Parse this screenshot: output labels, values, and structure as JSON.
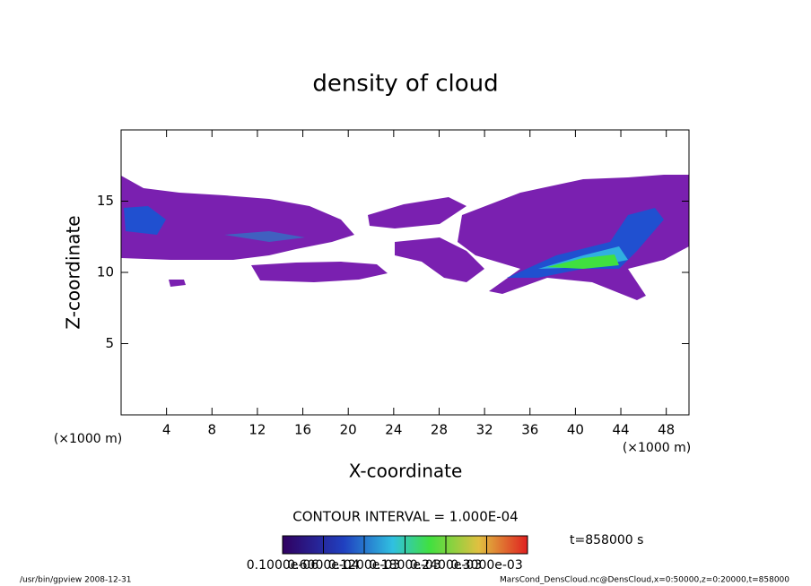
{
  "chart_data": {
    "type": "contour",
    "title": "density of cloud",
    "x_label": "X-coordinate",
    "y_label": "Z-coordinate",
    "x_unit_label": "(×1000 m)",
    "y_unit_label": "(×1000 m)",
    "xlim": [
      0,
      50
    ],
    "xticks": [
      4,
      8,
      12,
      16,
      20,
      24,
      28,
      32,
      36,
      40,
      44,
      48
    ],
    "ylim": [
      0,
      20
    ],
    "yticks": [
      5,
      10,
      15
    ],
    "contour_interval": "CONTOUR INTERVAL = 1.000E-04",
    "time_label": "t=858000 s",
    "colorbar_ticks": [
      {
        "value": 1e-07,
        "label": "0.1000e-06"
      },
      {
        "value": 6e-05,
        "label": "0.6000e-04"
      },
      {
        "value": 0.00012,
        "label": "0.1200e-03"
      },
      {
        "value": 0.00018,
        "label": "0.1800e-03"
      },
      {
        "value": 0.00024,
        "label": "0.2400e-03"
      },
      {
        "value": 0.0003,
        "label": "0.3000e-03"
      }
    ],
    "footer_left": "/usr/bin/gpview  2008-12-31",
    "footer_right": "MarsCond_DensCloud.nc@DensCloud,x=0:50000,z=0:20000,t=858000"
  }
}
